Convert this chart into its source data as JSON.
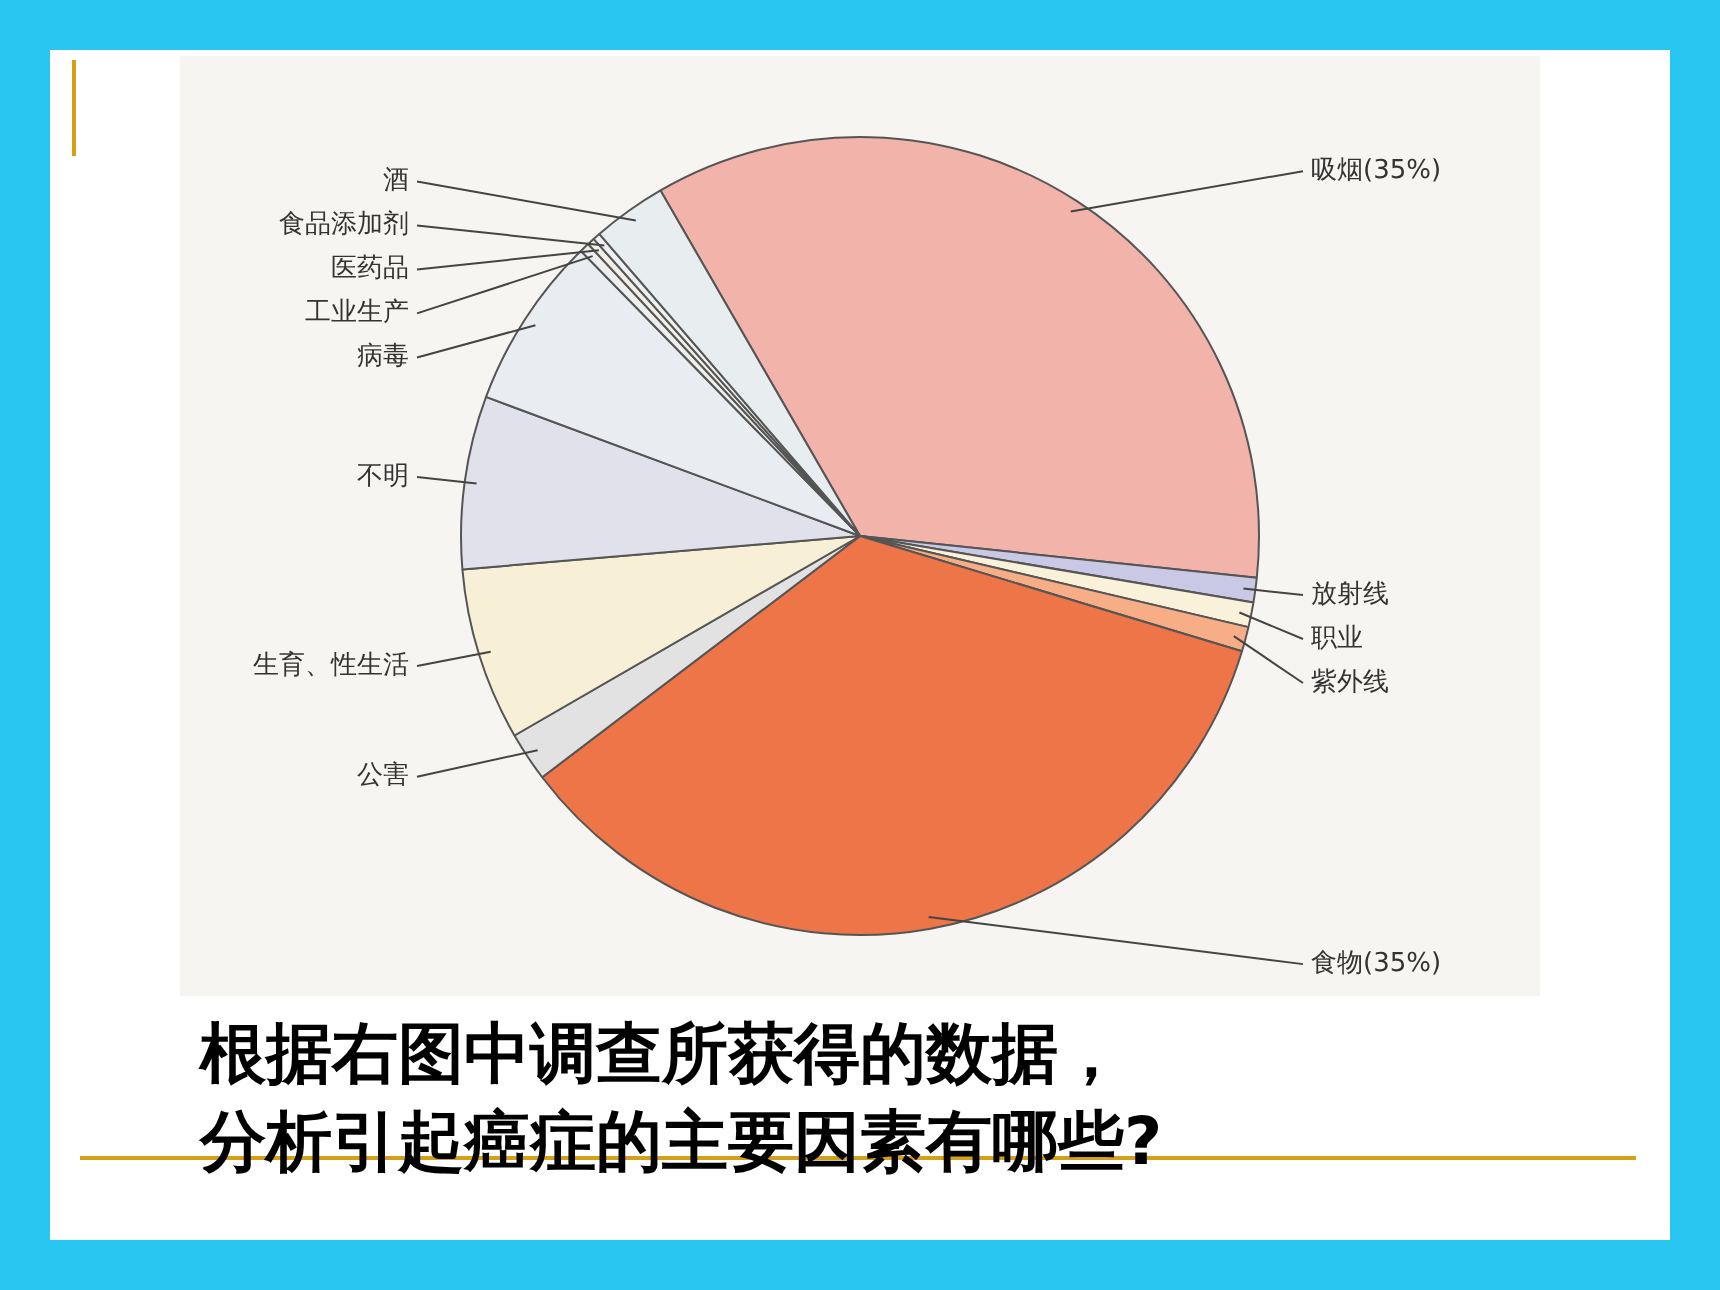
{
  "chart_data": {
    "type": "pie",
    "categories": [
      "吸烟(35%)",
      "放射线",
      "职业",
      "紫外线",
      "食物(35%)",
      "公害",
      "生育、性生活",
      "不明",
      "病毒",
      "工业生产",
      "医药品",
      "食品添加剂",
      "酒"
    ],
    "values": [
      35,
      1,
      1,
      1,
      35,
      2,
      7,
      7,
      7,
      0.4,
      0.3,
      0.3,
      3
    ],
    "colors": [
      "#f2b3aa",
      "#c9c9e6",
      "#f9f1da",
      "#f7ae86",
      "#ee7547",
      "#e2e2e2",
      "#f8f0d6",
      "#e1e1ec",
      "#e9edf1",
      "#eeeeee",
      "#f2f0e6",
      "#eef0f2",
      "#e8eef0"
    ],
    "annotations": [
      "根据右图中调查所获得的数据，",
      "分析引起癌症的主要因素有哪些?"
    ]
  }
}
